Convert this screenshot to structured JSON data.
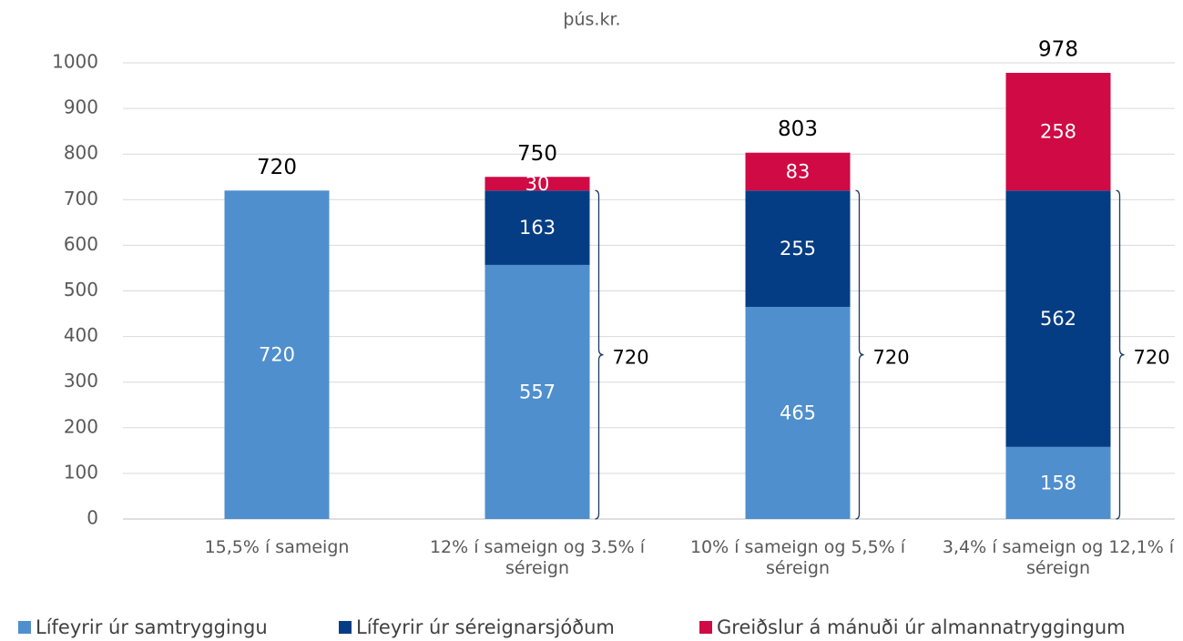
{
  "chart_data": {
    "type": "stacked_bar",
    "subtitle": "þús.kr.",
    "categories": [
      "15,5% í sameign",
      "12% í sameign og 3.5% í séreign",
      "10% í sameign og 5,5% í séreign",
      "3,4% í sameign og 12,1% í séreign"
    ],
    "series": [
      {
        "name": "Lífeyrir úr samtryggingu",
        "color": "#4f8fcd",
        "values": [
          720,
          557,
          465,
          158
        ]
      },
      {
        "name": "Lífeyrir úr séreignarsjóðum",
        "color": "#053d84",
        "values": [
          null,
          163,
          255,
          562
        ]
      },
      {
        "name": "Greiðslur á mánuði úr almannatryggingum",
        "color": "#cf0a44",
        "values": [
          null,
          30,
          83,
          258
        ]
      }
    ],
    "totals": [
      720,
      750,
      803,
      978
    ],
    "bracket_values": [
      null,
      720,
      720,
      720
    ],
    "ylim": [
      0,
      1000
    ],
    "yticks": [
      0,
      100,
      200,
      300,
      400,
      500,
      600,
      700,
      800,
      900,
      1000
    ],
    "grid": true,
    "legend": "bottom"
  }
}
